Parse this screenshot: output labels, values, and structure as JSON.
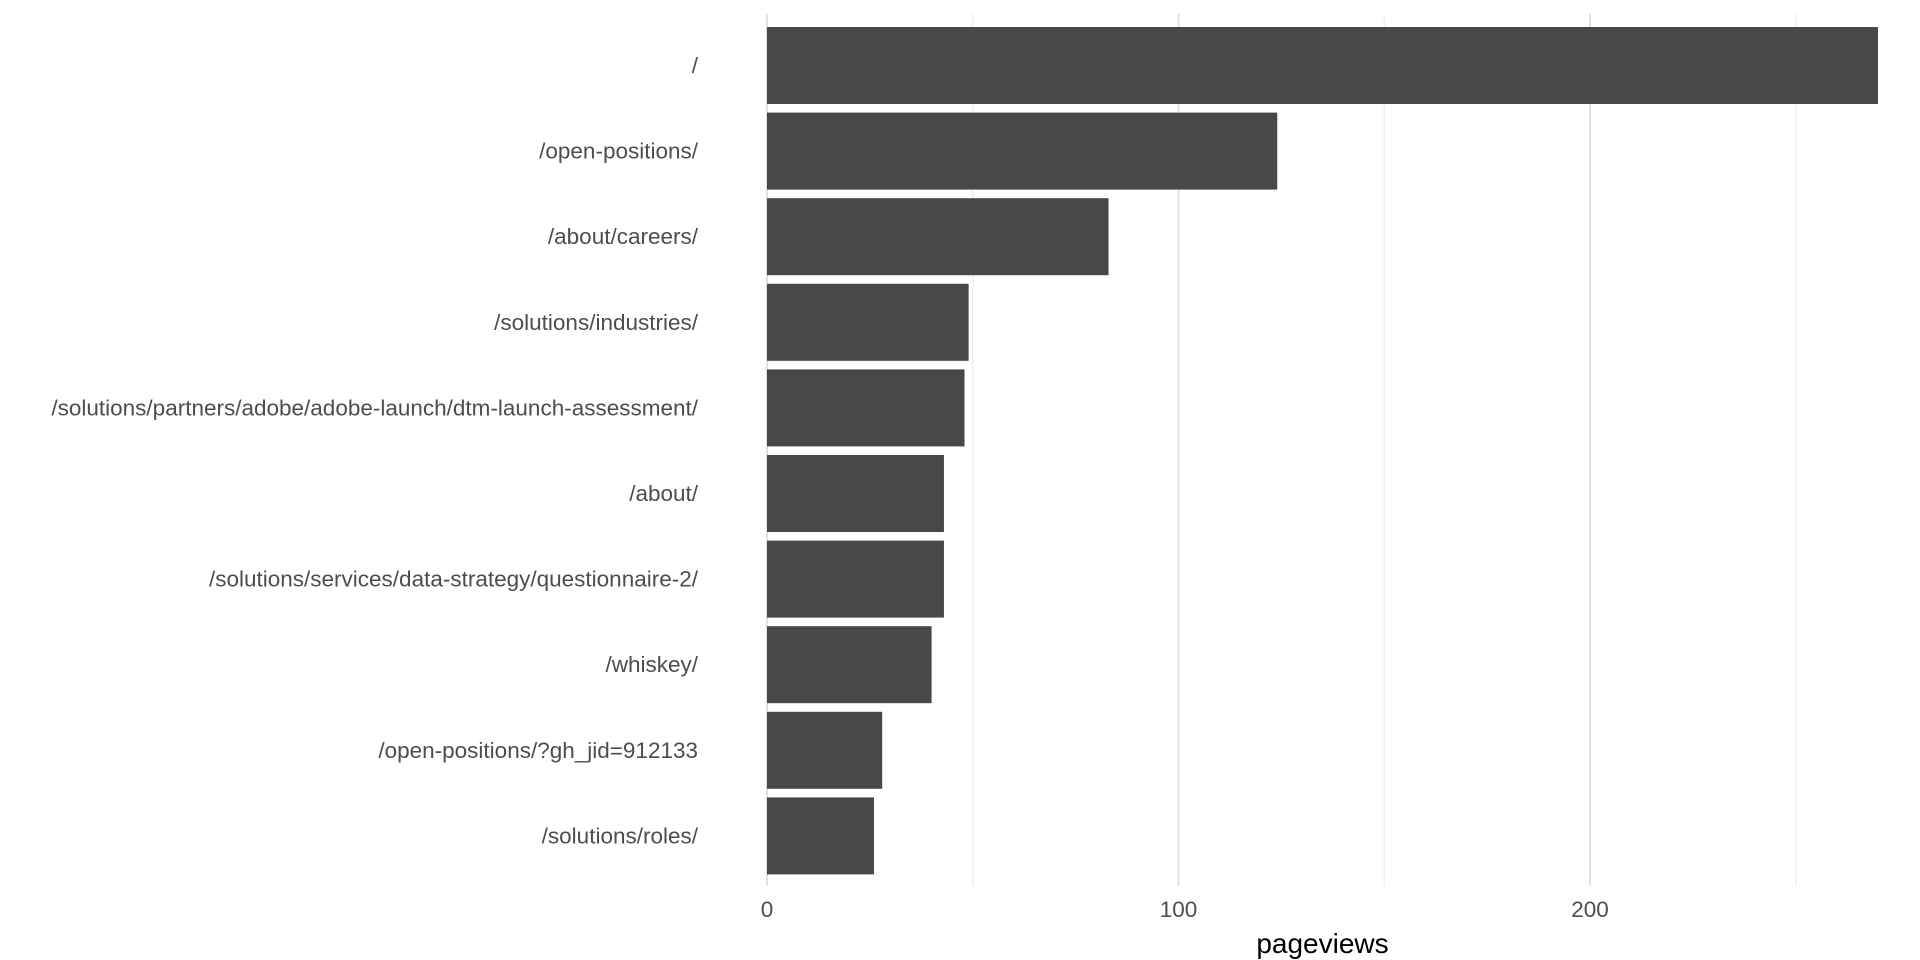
{
  "chart_data": {
    "type": "bar",
    "orientation": "horizontal",
    "categories": [
      "/",
      "/open-positions/",
      "/about/careers/",
      "/solutions/industries/",
      "/solutions/partners/adobe/adobe-launch/dtm-launch-assessment/",
      "/about/",
      "/solutions/services/data-strategy/questionnaire-2/",
      "/whiskey/",
      "/open-positions/?gh_jid=912133",
      "/solutions/roles/"
    ],
    "values": [
      270,
      124,
      83,
      49,
      48,
      43,
      43,
      40,
      28,
      26
    ],
    "xlabel": "pageviews",
    "ylabel": "",
    "title": "",
    "xlim": [
      0,
      270
    ],
    "x_ticks": [
      0,
      100,
      200
    ],
    "x_minor_ticks": [
      50,
      150,
      250
    ],
    "grid": true,
    "bar_color": "#484848",
    "grid_major_color": "#d9d9d9",
    "grid_minor_color": "#ececec"
  }
}
